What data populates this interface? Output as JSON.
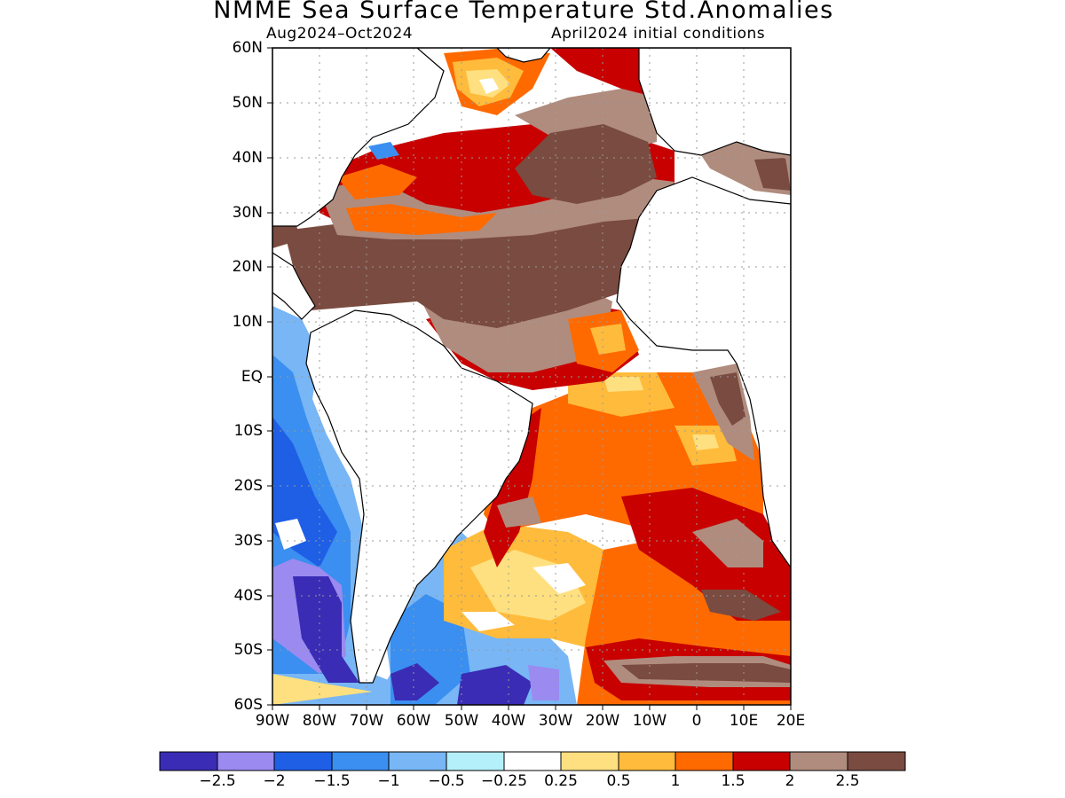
{
  "title": "NMME Sea Surface Temperature Std.Anomalies",
  "subtitle_left": "Aug2024–Oct2024",
  "subtitle_right": "April2024 initial conditions",
  "lat_labels": [
    "60N",
    "50N",
    "40N",
    "30N",
    "20N",
    "10N",
    "EQ",
    "10S",
    "20S",
    "30S",
    "40S",
    "50S",
    "60S"
  ],
  "lon_labels": [
    "90W",
    "80W",
    "70W",
    "60W",
    "50W",
    "40W",
    "30W",
    "20W",
    "10W",
    "0",
    "10E",
    "20E"
  ],
  "colorbar": {
    "colors": [
      "#3a2cb4",
      "#9b8af0",
      "#1f5fe6",
      "#3a8ff0",
      "#78b6f5",
      "#b4f0fa",
      "#ffffff",
      "#ffe080",
      "#ffbb3c",
      "#ff6a00",
      "#c80000",
      "#b08c7e",
      "#7a4b40"
    ],
    "labels": [
      "−2.5",
      "−2",
      "−1.5",
      "−1",
      "−0.5",
      "−0.25",
      "0.25",
      "0.5",
      "1",
      "1.5",
      "2",
      "2.5"
    ]
  }
}
